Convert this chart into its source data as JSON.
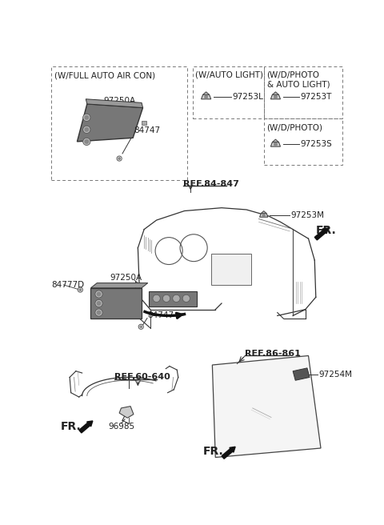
{
  "bg_color": "#ffffff",
  "lc": "#333333",
  "tc": "#222222",
  "parts": {
    "box1_label": "(W/FULL AUTO AIR CON)",
    "box1_part1": "97250A",
    "box1_part2": "84747",
    "box2_label": "(W/AUTO LIGHT)",
    "box2_part": "97253L",
    "box3_label": "(W/D/PHOTO\n& AUTO LIGHT)",
    "box3_part": "97253T",
    "box4_label": "(W/D/PHOTO)",
    "box4_part": "97253S",
    "ref1": "REF.84-847",
    "ref2": "REF.60-640",
    "ref3": "REF.86-861",
    "mid_part1": "97253M",
    "mid_part2": "97250A",
    "mid_part3": "84747",
    "mid_part4": "84777D",
    "bot_part1": "96985",
    "bot_part2": "97254M",
    "fr_label": "FR."
  }
}
